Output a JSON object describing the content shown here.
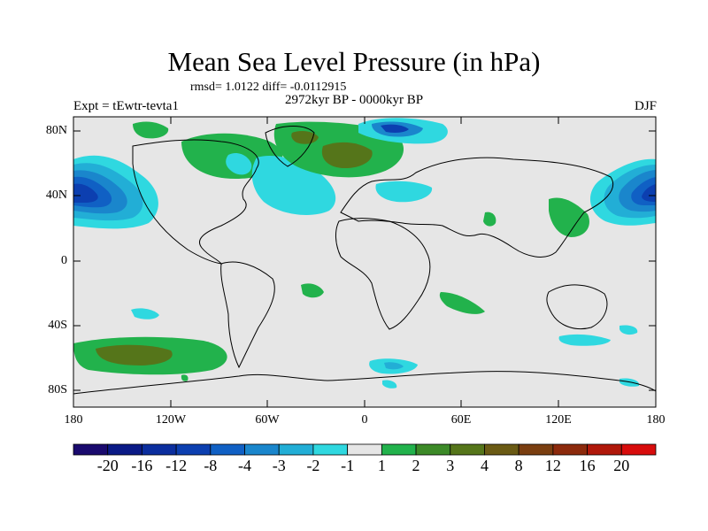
{
  "title": "Mean Sea Level Pressure (in hPa)",
  "stats": "rmsd= 1.0122 diff= -0.0112915",
  "experiment": "Expt = tEwtr-tevta1",
  "period": "2972kyr BP - 0000kyr BP",
  "season": "DJF",
  "y_ticks": [
    "80N",
    "40N",
    "0",
    "40S",
    "80S"
  ],
  "x_ticks": [
    "180",
    "120W",
    "60W",
    "0",
    "60E",
    "120E",
    "180"
  ],
  "colorbar": {
    "labels": [
      "-20",
      "-16",
      "-12",
      "-8",
      "-4",
      "-3",
      "-2",
      "-1",
      "1",
      "2",
      "3",
      "4",
      "8",
      "12",
      "16",
      "20"
    ],
    "colors": [
      "#1a0a6e",
      "#0a1a86",
      "#0b2e9e",
      "#0c3fb0",
      "#1060c4",
      "#1a86cc",
      "#22aed6",
      "#2fd8e0",
      "#e6e6e6",
      "#22b24c",
      "#3c8a28",
      "#55751a",
      "#6a5a14",
      "#7a3e10",
      "#8c2a0c",
      "#b0180a",
      "#d80c0c"
    ]
  },
  "colors": {
    "land_background": "#e6e6e6",
    "positive_1": "#22b24c",
    "positive_2": "#55751a",
    "negative_1": "#2fd8e0",
    "negative_2": "#22aed6",
    "negative_3": "#1a86cc",
    "negative_4": "#1060c4",
    "negative_5": "#0c3fb0"
  }
}
